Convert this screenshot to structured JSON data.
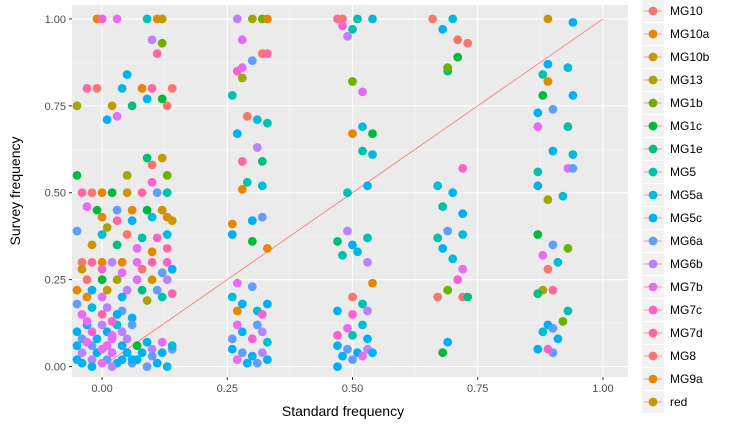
{
  "chart_data": {
    "type": "scatter",
    "xlabel": "Standard frequency",
    "ylabel": "Survey frequency",
    "xlim": [
      -0.06,
      1.05
    ],
    "ylim": [
      -0.03,
      1.04
    ],
    "x_ticks": [
      {
        "value": 0,
        "label": "0.00"
      },
      {
        "value": 0.25,
        "label": "0.25"
      },
      {
        "value": 0.5,
        "label": "0.50"
      },
      {
        "value": 0.75,
        "label": "0.75"
      },
      {
        "value": 1,
        "label": "1.00"
      }
    ],
    "y_ticks": [
      {
        "value": 0,
        "label": "0.00"
      },
      {
        "value": 0.25,
        "label": "0.25"
      },
      {
        "value": 0.5,
        "label": "0.50"
      },
      {
        "value": 0.75,
        "label": "0.75"
      },
      {
        "value": 1,
        "label": "1.00"
      }
    ],
    "grid": true,
    "legend_position": "right",
    "reference_line": {
      "from": [
        0,
        0
      ],
      "to": [
        1,
        1
      ],
      "color": "#F8766D"
    },
    "series": [
      {
        "name": "MG10",
        "color": "#F8766D"
      },
      {
        "name": "MG10a",
        "color": "#E58700"
      },
      {
        "name": "MG10b",
        "color": "#C99800"
      },
      {
        "name": "MG13",
        "color": "#A3A500"
      },
      {
        "name": "MG1b",
        "color": "#6BB100"
      },
      {
        "name": "MG1c",
        "color": "#00BA38"
      },
      {
        "name": "MG1e",
        "color": "#00BF7D"
      },
      {
        "name": "MG5",
        "color": "#00C0AF"
      },
      {
        "name": "MG5a",
        "color": "#00BCD8"
      },
      {
        "name": "MG5c",
        "color": "#00B0F6"
      },
      {
        "name": "MG6a",
        "color": "#619CFF"
      },
      {
        "name": "MG6b",
        "color": "#B983FF"
      },
      {
        "name": "MG7b",
        "color": "#E76BF3"
      },
      {
        "name": "MG7c",
        "color": "#FD61D1"
      },
      {
        "name": "MG7d",
        "color": "#FF67A4"
      },
      {
        "name": "MG8",
        "color": "#F8766D"
      },
      {
        "name": "MG9a",
        "color": "#E58700"
      },
      {
        "name": "red",
        "color": "#C99800"
      }
    ],
    "points": [
      [
        -0.01,
        1.0,
        1
      ],
      [
        0.0,
        1.0,
        13
      ],
      [
        0.03,
        1.0,
        12
      ],
      [
        0.09,
        1.0,
        7
      ],
      [
        0.11,
        1.0,
        1
      ],
      [
        0.12,
        1.0,
        2
      ],
      [
        0.27,
        1.0,
        11
      ],
      [
        0.3,
        1.0,
        3
      ],
      [
        0.32,
        1.0,
        4
      ],
      [
        0.33,
        1.0,
        1
      ],
      [
        0.47,
        1.0,
        14
      ],
      [
        0.48,
        1.0,
        0
      ],
      [
        0.51,
        1.0,
        7
      ],
      [
        0.54,
        1.0,
        8
      ],
      [
        0.66,
        1.0,
        15
      ],
      [
        0.7,
        1.0,
        8
      ],
      [
        0.89,
        1.0,
        2
      ],
      [
        0.94,
        0.99,
        9
      ],
      [
        0.48,
        0.98,
        13
      ],
      [
        0.5,
        0.97,
        7
      ],
      [
        0.68,
        0.97,
        9
      ],
      [
        0.49,
        0.95,
        11
      ],
      [
        0.71,
        0.94,
        15
      ],
      [
        0.73,
        0.93,
        0
      ],
      [
        0.28,
        0.94,
        12
      ],
      [
        0.1,
        0.94,
        11
      ],
      [
        0.12,
        0.93,
        4
      ],
      [
        0.32,
        0.9,
        0
      ],
      [
        0.33,
        0.9,
        14
      ],
      [
        0.71,
        0.89,
        5
      ],
      [
        0.11,
        0.9,
        14
      ],
      [
        0.3,
        0.88,
        10
      ],
      [
        0.27,
        0.85,
        13
      ],
      [
        0.28,
        0.86,
        12
      ],
      [
        0.69,
        0.85,
        6
      ],
      [
        0.69,
        0.86,
        4
      ],
      [
        0.28,
        0.83,
        3
      ],
      [
        0.89,
        0.87,
        9
      ],
      [
        0.93,
        0.86,
        8
      ],
      [
        0.88,
        0.84,
        7
      ],
      [
        0.5,
        0.82,
        4
      ],
      [
        0.89,
        0.82,
        1
      ],
      [
        0.52,
        0.79,
        12
      ],
      [
        0.88,
        0.78,
        5
      ],
      [
        0.94,
        0.78,
        9
      ],
      [
        0.26,
        0.78,
        7
      ],
      [
        0.05,
        0.84,
        9
      ],
      [
        -0.03,
        0.8,
        14
      ],
      [
        -0.01,
        0.8,
        0
      ],
      [
        0.04,
        0.8,
        8
      ],
      [
        0.08,
        0.8,
        1
      ],
      [
        0.1,
        0.8,
        14
      ],
      [
        0.14,
        0.8,
        15
      ],
      [
        0.09,
        0.77,
        9
      ],
      [
        0.12,
        0.77,
        5
      ],
      [
        -0.05,
        0.75,
        3
      ],
      [
        0.02,
        0.75,
        2
      ],
      [
        0.06,
        0.75,
        6
      ],
      [
        0.13,
        0.75,
        15
      ],
      [
        0.87,
        0.73,
        9
      ],
      [
        0.9,
        0.74,
        10
      ],
      [
        0.03,
        0.72,
        12
      ],
      [
        0.01,
        0.71,
        9
      ],
      [
        0.31,
        0.71,
        8
      ],
      [
        0.33,
        0.7,
        7
      ],
      [
        0.29,
        0.72,
        0
      ],
      [
        0.87,
        0.69,
        12
      ],
      [
        0.93,
        0.69,
        7
      ],
      [
        0.5,
        0.67,
        1
      ],
      [
        0.54,
        0.67,
        5
      ],
      [
        0.52,
        0.69,
        8
      ],
      [
        0.27,
        0.67,
        9
      ],
      [
        0.31,
        0.63,
        11
      ],
      [
        0.09,
        0.6,
        6
      ],
      [
        0.12,
        0.6,
        2
      ],
      [
        0.1,
        0.58,
        15
      ],
      [
        0.52,
        0.62,
        7
      ],
      [
        0.54,
        0.61,
        8
      ],
      [
        0.9,
        0.62,
        9
      ],
      [
        0.94,
        0.61,
        8
      ],
      [
        0.28,
        0.59,
        14
      ],
      [
        0.32,
        0.59,
        6
      ],
      [
        -0.05,
        0.55,
        5
      ],
      [
        0.05,
        0.55,
        3
      ],
      [
        0.1,
        0.53,
        13
      ],
      [
        0.13,
        0.55,
        4
      ],
      [
        0.87,
        0.56,
        7
      ],
      [
        0.93,
        0.57,
        12
      ],
      [
        0.94,
        0.57,
        10
      ],
      [
        0.72,
        0.57,
        13
      ],
      [
        0.29,
        0.53,
        7
      ],
      [
        0.32,
        0.52,
        8
      ],
      [
        0.28,
        0.51,
        1
      ],
      [
        -0.04,
        0.5,
        14
      ],
      [
        -0.02,
        0.5,
        0
      ],
      [
        0.0,
        0.5,
        1
      ],
      [
        0.02,
        0.5,
        5
      ],
      [
        0.05,
        0.5,
        2
      ],
      [
        0.08,
        0.5,
        14
      ],
      [
        0.11,
        0.5,
        10
      ],
      [
        0.13,
        0.5,
        7
      ],
      [
        0.67,
        0.52,
        8
      ],
      [
        0.7,
        0.5,
        9
      ],
      [
        0.49,
        0.5,
        7
      ],
      [
        0.53,
        0.52,
        9
      ],
      [
        0.87,
        0.52,
        9
      ],
      [
        0.89,
        0.48,
        3
      ],
      [
        0.92,
        0.49,
        8
      ],
      [
        0.68,
        0.46,
        7
      ],
      [
        0.72,
        0.44,
        9
      ],
      [
        -0.03,
        0.46,
        12
      ],
      [
        -0.01,
        0.45,
        5
      ],
      [
        0.03,
        0.45,
        10
      ],
      [
        0.06,
        0.45,
        1
      ],
      [
        0.09,
        0.45,
        5
      ],
      [
        0.12,
        0.45,
        2
      ],
      [
        0.0,
        0.43,
        1
      ],
      [
        0.03,
        0.42,
        14
      ],
      [
        0.06,
        0.42,
        9
      ],
      [
        0.1,
        0.43,
        8
      ],
      [
        0.13,
        0.43,
        1
      ],
      [
        0.14,
        0.42,
        2
      ],
      [
        0.3,
        0.42,
        9
      ],
      [
        0.32,
        0.43,
        10
      ],
      [
        0.26,
        0.41,
        1
      ],
      [
        0.01,
        0.4,
        3
      ],
      [
        -0.05,
        0.39,
        10
      ],
      [
        0.0,
        0.38,
        8
      ],
      [
        0.05,
        0.38,
        0
      ],
      [
        0.08,
        0.37,
        7
      ],
      [
        0.11,
        0.37,
        13
      ],
      [
        0.13,
        0.38,
        8
      ],
      [
        0.03,
        0.35,
        6
      ],
      [
        -0.02,
        0.35,
        2
      ],
      [
        0.07,
        0.34,
        12
      ],
      [
        0.1,
        0.33,
        1
      ],
      [
        0.13,
        0.34,
        14
      ],
      [
        0.26,
        0.38,
        9
      ],
      [
        0.3,
        0.36,
        5
      ],
      [
        0.33,
        0.34,
        1
      ],
      [
        0.49,
        0.39,
        11
      ],
      [
        0.53,
        0.37,
        7
      ],
      [
        0.47,
        0.36,
        6
      ],
      [
        0.69,
        0.39,
        10
      ],
      [
        0.72,
        0.38,
        8
      ],
      [
        0.67,
        0.37,
        7
      ],
      [
        0.68,
        0.34,
        9
      ],
      [
        0.87,
        0.38,
        5
      ],
      [
        0.9,
        0.35,
        10
      ],
      [
        0.93,
        0.34,
        4
      ],
      [
        0.88,
        0.32,
        12
      ],
      [
        0.91,
        0.3,
        8
      ],
      [
        0.5,
        0.35,
        9
      ],
      [
        0.51,
        0.33,
        8
      ],
      [
        0.53,
        0.3,
        11
      ],
      [
        0.48,
        0.32,
        7
      ],
      [
        0.7,
        0.31,
        8
      ],
      [
        -0.04,
        0.3,
        0
      ],
      [
        -0.02,
        0.3,
        14
      ],
      [
        0.0,
        0.3,
        16
      ],
      [
        0.02,
        0.3,
        11
      ],
      [
        0.04,
        0.3,
        1
      ],
      [
        0.07,
        0.3,
        12
      ],
      [
        0.1,
        0.3,
        14
      ],
      [
        0.13,
        0.3,
        13
      ],
      [
        -0.04,
        0.28,
        2
      ],
      [
        0.0,
        0.28,
        13
      ],
      [
        0.04,
        0.27,
        12
      ],
      [
        0.08,
        0.28,
        0
      ],
      [
        0.12,
        0.27,
        10
      ],
      [
        0.14,
        0.28,
        9
      ],
      [
        -0.03,
        0.25,
        0
      ],
      [
        0.0,
        0.25,
        5
      ],
      [
        0.03,
        0.25,
        3
      ],
      [
        0.07,
        0.25,
        12
      ],
      [
        0.1,
        0.25,
        2
      ],
      [
        0.13,
        0.25,
        11
      ],
      [
        -0.05,
        0.22,
        1
      ],
      [
        -0.02,
        0.22,
        9
      ],
      [
        0.01,
        0.22,
        2
      ],
      [
        0.05,
        0.22,
        11
      ],
      [
        0.08,
        0.22,
        6
      ],
      [
        0.11,
        0.22,
        10
      ],
      [
        0.14,
        0.21,
        14
      ],
      [
        -0.03,
        0.2,
        16
      ],
      [
        0.0,
        0.2,
        12
      ],
      [
        0.04,
        0.2,
        9
      ],
      [
        0.09,
        0.19,
        3
      ],
      [
        0.12,
        0.2,
        7
      ],
      [
        0.72,
        0.28,
        12
      ],
      [
        0.71,
        0.25,
        13
      ],
      [
        0.54,
        0.24,
        1
      ],
      [
        0.89,
        0.28,
        15
      ],
      [
        0.9,
        0.22,
        14
      ],
      [
        0.88,
        0.22,
        3
      ],
      [
        0.87,
        0.21,
        6
      ],
      [
        0.67,
        0.2,
        0
      ],
      [
        0.69,
        0.22,
        4
      ],
      [
        0.72,
        0.2,
        15
      ],
      [
        0.73,
        0.2,
        6
      ],
      [
        0.27,
        0.24,
        12
      ],
      [
        0.3,
        0.23,
        10
      ],
      [
        0.26,
        0.2,
        8
      ],
      [
        0.28,
        0.18,
        9
      ],
      [
        0.33,
        0.18,
        9
      ],
      [
        0.31,
        0.16,
        8
      ],
      [
        0.27,
        0.16,
        1
      ],
      [
        0.32,
        0.15,
        13
      ],
      [
        0.5,
        0.2,
        15
      ],
      [
        0.52,
        0.18,
        7
      ],
      [
        0.47,
        0.16,
        9
      ],
      [
        0.5,
        0.15,
        13
      ],
      [
        0.53,
        0.16,
        11
      ],
      [
        0.93,
        0.16,
        7
      ],
      [
        0.89,
        0.12,
        9
      ],
      [
        0.92,
        0.13,
        4
      ],
      [
        -0.05,
        0.18,
        10
      ],
      [
        -0.02,
        0.17,
        8
      ],
      [
        0.01,
        0.17,
        11
      ],
      [
        0.04,
        0.16,
        10
      ],
      [
        -0.04,
        0.15,
        12
      ],
      [
        0.0,
        0.15,
        14
      ],
      [
        0.03,
        0.15,
        9
      ],
      [
        0.06,
        0.14,
        9
      ],
      [
        -0.03,
        0.12,
        9
      ],
      [
        0.0,
        0.12,
        11
      ],
      [
        0.03,
        0.12,
        8
      ],
      [
        0.06,
        0.12,
        10
      ],
      [
        -0.05,
        0.1,
        9
      ],
      [
        -0.02,
        0.1,
        13
      ],
      [
        0.01,
        0.1,
        9
      ],
      [
        0.04,
        0.1,
        11
      ],
      [
        -0.04,
        0.08,
        10
      ],
      [
        -0.01,
        0.08,
        9
      ],
      [
        0.02,
        0.08,
        12
      ],
      [
        0.05,
        0.08,
        11
      ],
      [
        -0.05,
        0.06,
        9
      ],
      [
        -0.02,
        0.06,
        10
      ],
      [
        0.01,
        0.06,
        12
      ],
      [
        0.04,
        0.06,
        9
      ],
      [
        -0.04,
        0.04,
        11
      ],
      [
        -0.01,
        0.04,
        9
      ],
      [
        0.02,
        0.04,
        12
      ],
      [
        0.05,
        0.04,
        9
      ],
      [
        -0.05,
        0.02,
        9
      ],
      [
        -0.02,
        0.02,
        11
      ],
      [
        0.01,
        0.02,
        10
      ],
      [
        0.04,
        0.02,
        9
      ],
      [
        -0.04,
        0.01,
        9
      ],
      [
        0.0,
        0.01,
        12
      ],
      [
        0.03,
        0.01,
        9
      ],
      [
        0.06,
        0.01,
        10
      ],
      [
        -0.02,
        0.0,
        9
      ],
      [
        0.02,
        0.0,
        11
      ],
      [
        -0.03,
        0.13,
        12
      ],
      [
        0.02,
        0.13,
        13
      ],
      [
        0.0,
        0.05,
        12
      ],
      [
        -0.03,
        0.07,
        12
      ],
      [
        0.02,
        0.09,
        12
      ],
      [
        0.06,
        0.02,
        9
      ],
      [
        0.09,
        0.0,
        10
      ],
      [
        0.11,
        0.01,
        9
      ],
      [
        0.13,
        0.0,
        8
      ],
      [
        0.08,
        0.04,
        9
      ],
      [
        0.1,
        0.05,
        11
      ],
      [
        0.12,
        0.04,
        9
      ],
      [
        0.14,
        0.05,
        10
      ],
      [
        0.07,
        0.06,
        5
      ],
      [
        0.09,
        0.07,
        9
      ],
      [
        0.12,
        0.07,
        12
      ],
      [
        0.14,
        0.06,
        8
      ],
      [
        0.1,
        0.03,
        10
      ],
      [
        0.07,
        0.02,
        9
      ],
      [
        0.26,
        0.05,
        9
      ],
      [
        0.28,
        0.04,
        10
      ],
      [
        0.3,
        0.03,
        9
      ],
      [
        0.32,
        0.04,
        11
      ],
      [
        0.27,
        0.02,
        12
      ],
      [
        0.29,
        0.01,
        9
      ],
      [
        0.31,
        0.01,
        10
      ],
      [
        0.33,
        0.02,
        9
      ],
      [
        0.26,
        0.08,
        10
      ],
      [
        0.3,
        0.08,
        13
      ],
      [
        0.33,
        0.07,
        8
      ],
      [
        0.28,
        0.1,
        9
      ],
      [
        0.31,
        0.12,
        10
      ],
      [
        0.27,
        0.12,
        12
      ],
      [
        0.32,
        0.1,
        11
      ],
      [
        0.47,
        0.06,
        9
      ],
      [
        0.49,
        0.05,
        10
      ],
      [
        0.51,
        0.04,
        9
      ],
      [
        0.53,
        0.05,
        11
      ],
      [
        0.48,
        0.03,
        9
      ],
      [
        0.5,
        0.02,
        10
      ],
      [
        0.52,
        0.03,
        12
      ],
      [
        0.54,
        0.04,
        9
      ],
      [
        0.47,
        0.09,
        13
      ],
      [
        0.5,
        0.09,
        7
      ],
      [
        0.53,
        0.08,
        9
      ],
      [
        0.49,
        0.11,
        12
      ],
      [
        0.52,
        0.12,
        8
      ],
      [
        0.47,
        0.0,
        9
      ],
      [
        0.69,
        0.07,
        9
      ],
      [
        0.68,
        0.04,
        5
      ],
      [
        0.87,
        0.05,
        9
      ],
      [
        0.9,
        0.04,
        10
      ],
      [
        0.88,
        0.1,
        8
      ],
      [
        0.9,
        0.11,
        10
      ],
      [
        0.91,
        0.08,
        9
      ],
      [
        0.89,
        0.05,
        13
      ]
    ]
  }
}
